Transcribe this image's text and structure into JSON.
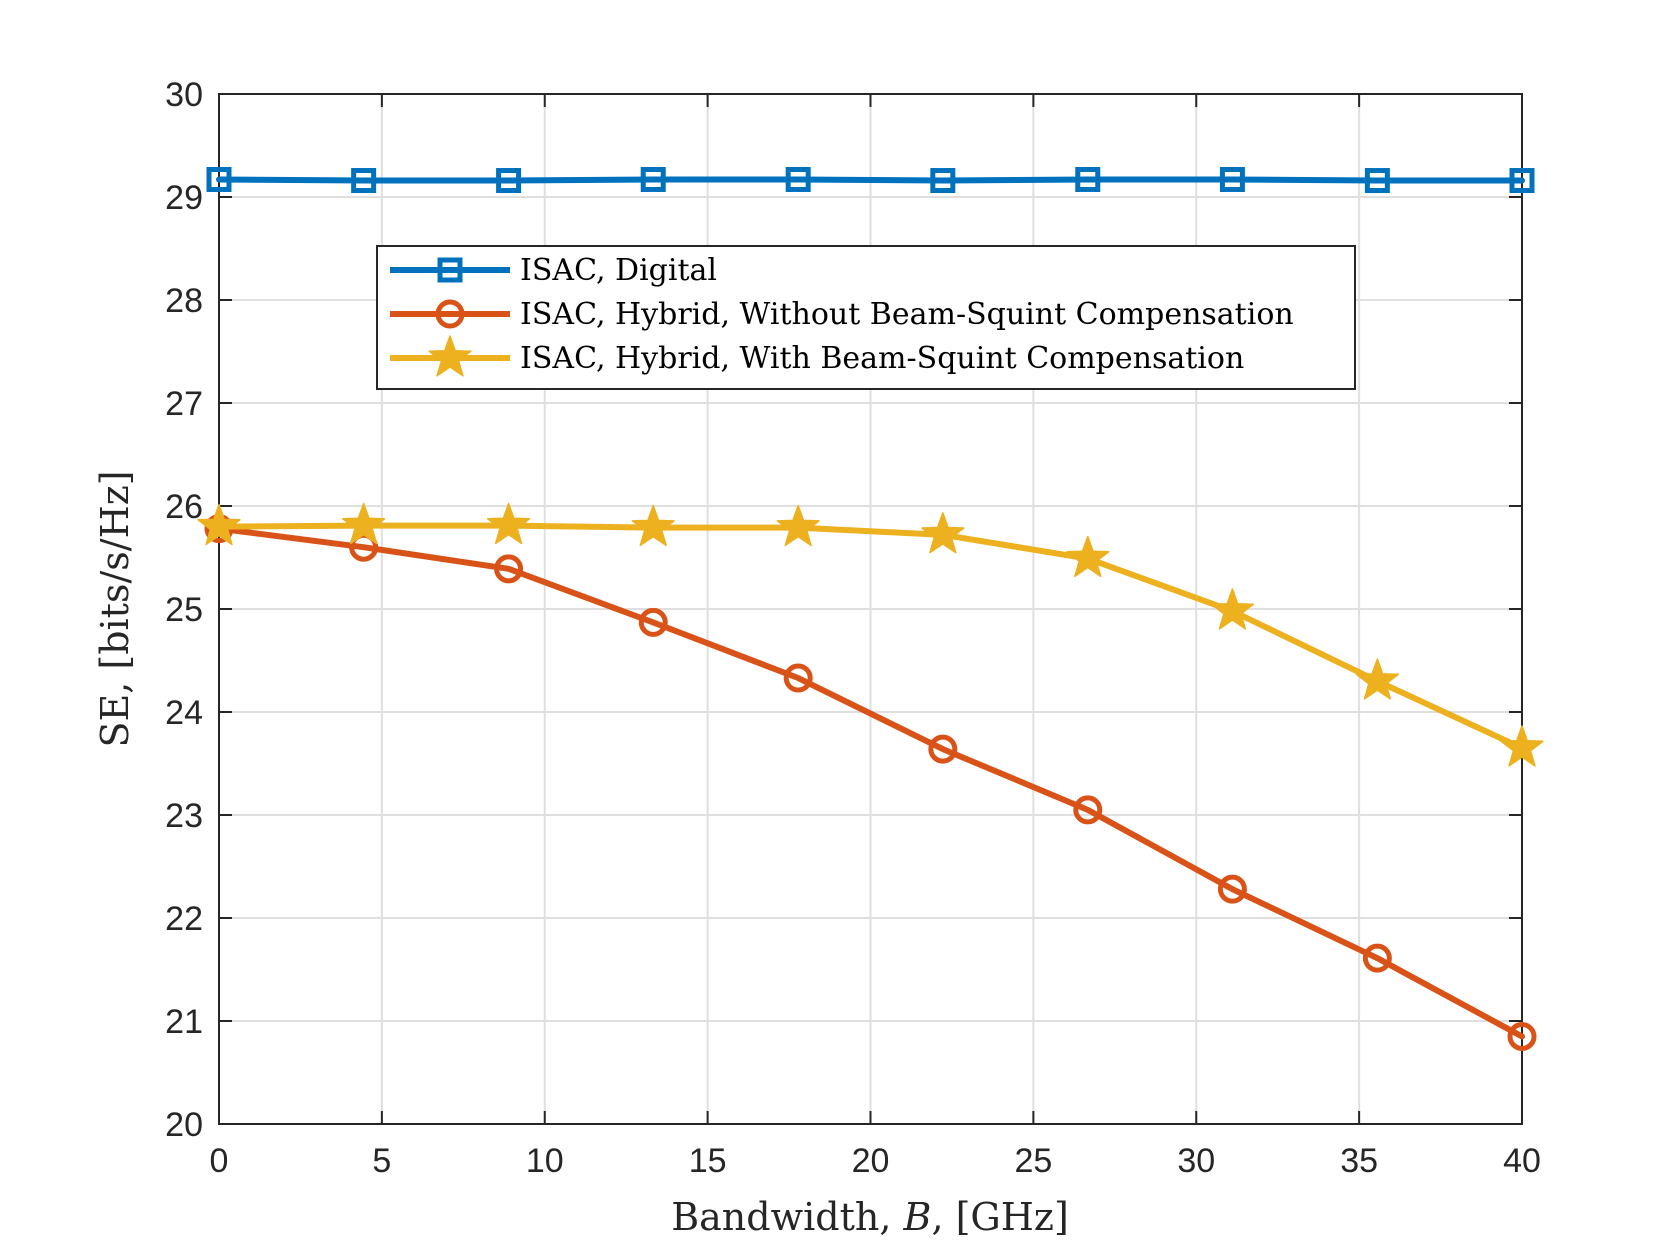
{
  "chart_data": {
    "type": "line",
    "title": "",
    "xlabel_prefix": "Bandwidth, ",
    "xlabel_var": "B",
    "xlabel_suffix": ", [GHz]",
    "ylabel": "SE, [bits/s/Hz]",
    "xlim": [
      0,
      40
    ],
    "ylim": [
      20,
      30
    ],
    "xticks": [
      0,
      5,
      10,
      15,
      20,
      25,
      30,
      35,
      40
    ],
    "yticks": [
      20,
      21,
      22,
      23,
      24,
      25,
      26,
      27,
      28,
      29,
      30
    ],
    "grid": true,
    "legend_position": "upper-center",
    "x": [
      0,
      4.44,
      8.89,
      13.33,
      17.78,
      22.22,
      26.67,
      31.11,
      35.56,
      40
    ],
    "series": [
      {
        "name": "ISAC, Digital",
        "color": "#0072BD",
        "marker": "square",
        "values": [
          29.17,
          29.16,
          29.16,
          29.17,
          29.17,
          29.16,
          29.17,
          29.17,
          29.16,
          29.16
        ]
      },
      {
        "name": "ISAC, Hybrid, Without Beam-Squint Compensation",
        "color": "#D95319",
        "marker": "circle",
        "values": [
          25.78,
          25.6,
          25.39,
          24.87,
          24.33,
          23.64,
          23.05,
          22.28,
          21.61,
          20.85
        ]
      },
      {
        "name": "ISAC, Hybrid, With Beam-Squint Compensation",
        "color": "#EDB120",
        "marker": "star",
        "values": [
          25.8,
          25.81,
          25.81,
          25.79,
          25.79,
          25.72,
          25.49,
          24.98,
          24.3,
          23.65
        ]
      }
    ]
  }
}
